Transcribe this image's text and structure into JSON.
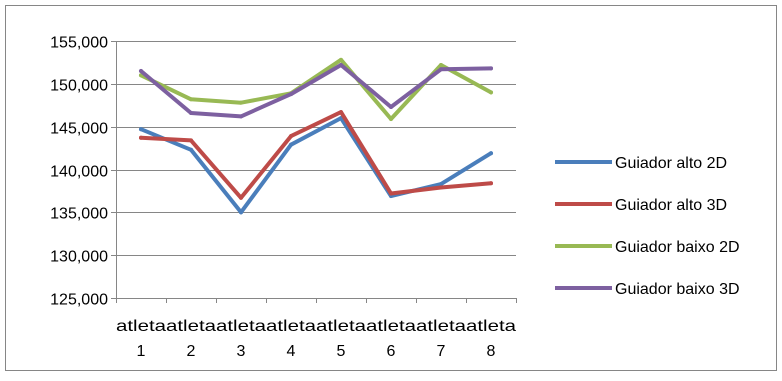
{
  "chart_data": {
    "type": "line",
    "title": "",
    "xlabel": "",
    "ylabel": "",
    "categories": [
      "atleta 1",
      "atleta 2",
      "atleta 3",
      "atleta 4",
      "atleta 5",
      "atleta 6",
      "atleta 7",
      "atleta 8"
    ],
    "category_top": "atleta",
    "category_bottom": [
      "1",
      "2",
      "3",
      "4",
      "5",
      "6",
      "7",
      "8"
    ],
    "ylim": [
      125000,
      155000
    ],
    "yticks": [
      125000,
      130000,
      135000,
      140000,
      145000,
      150000,
      155000
    ],
    "ytick_labels": [
      "125,000",
      "130,000",
      "135,000",
      "140,000",
      "145,000",
      "150,000",
      "155,000"
    ],
    "grid": "horizontal",
    "legend_position": "right",
    "series": [
      {
        "name": "Guiador alto 2D",
        "color": "#4a7ebb",
        "values": [
          144700,
          142300,
          135000,
          142900,
          146000,
          136900,
          138300,
          141900
        ]
      },
      {
        "name": "Guiador alto 3D",
        "color": "#be4b48",
        "values": [
          143700,
          143400,
          136700,
          143900,
          146700,
          137200,
          137900,
          138400
        ]
      },
      {
        "name": "Guiador baixo 2D",
        "color": "#98b954",
        "values": [
          151000,
          148200,
          147800,
          148900,
          152800,
          145900,
          152200,
          149000
        ]
      },
      {
        "name": "Guiador baixo 3D",
        "color": "#7d60a0",
        "values": [
          151500,
          146600,
          146200,
          148800,
          152200,
          147300,
          151700,
          151800
        ]
      }
    ]
  }
}
